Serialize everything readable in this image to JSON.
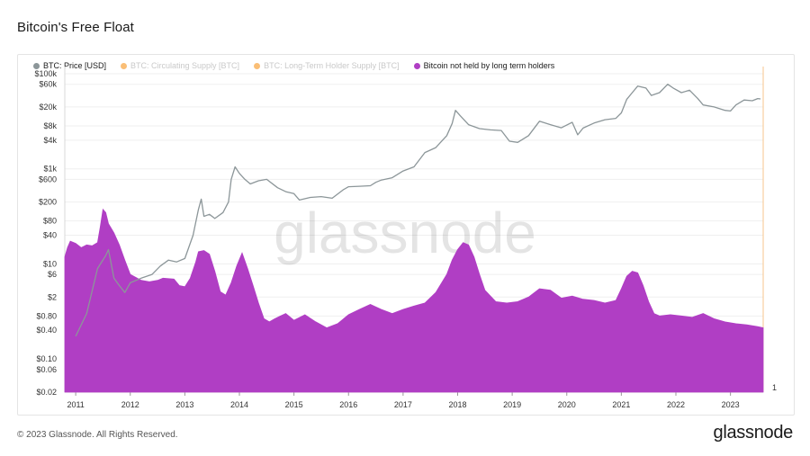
{
  "header": {
    "title": "Bitcoin's Free Float"
  },
  "footer": {
    "copyright": "© 2023 Glassnode. All Rights Reserved.",
    "brand": "glassnode"
  },
  "watermark": "glassnode",
  "legend": [
    {
      "label": "BTC: Price [USD]",
      "color": "#8c9699",
      "muted": false
    },
    {
      "label": "BTC: Circulating Supply [BTC]",
      "color": "#f7931a",
      "muted": true
    },
    {
      "label": "BTC: Long-Term Holder Supply [BTC]",
      "color": "#f7931a",
      "muted": true
    },
    {
      "label": "Bitcoin not held by long term holders",
      "color": "#b03ec4",
      "muted": false
    }
  ],
  "chart_data": {
    "type": "area",
    "title": "Bitcoin's Free Float",
    "x_ticks": [
      "2011",
      "2012",
      "2013",
      "2014",
      "2015",
      "2016",
      "2017",
      "2018",
      "2019",
      "2020",
      "2021",
      "2022",
      "2023"
    ],
    "x_range": [
      2010.8,
      2023.6
    ],
    "y_left": {
      "scale": "log",
      "range": [
        0.02,
        100000
      ],
      "ticks": [
        "$100k",
        "$60k",
        "$20k",
        "$8k",
        "$4k",
        "$1k",
        "$600",
        "$200",
        "$80",
        "$40",
        "$10",
        "$6",
        "$2",
        "$0.80",
        "$0.40",
        "$0.10",
        "$0.06",
        "$0.02"
      ]
    },
    "y_right": {
      "ticks": [
        "1"
      ]
    },
    "series": [
      {
        "name": "Bitcoin not held by long term holders",
        "kind": "area",
        "color": "#b03ec4",
        "x": [
          2010.8,
          2010.85,
          2010.9,
          2011.0,
          2011.1,
          2011.2,
          2011.3,
          2011.4,
          2011.45,
          2011.5,
          2011.55,
          2011.6,
          2011.7,
          2011.8,
          2011.9,
          2012.0,
          2012.2,
          2012.35,
          2012.5,
          2012.6,
          2012.8,
          2012.9,
          2013.0,
          2013.1,
          2013.2,
          2013.25,
          2013.35,
          2013.45,
          2013.55,
          2013.65,
          2013.75,
          2013.85,
          2013.95,
          2014.05,
          2014.15,
          2014.25,
          2014.35,
          2014.45,
          2014.55,
          2014.65,
          2014.75,
          2014.85,
          2015.0,
          2015.2,
          2015.4,
          2015.6,
          2015.8,
          2016.0,
          2016.2,
          2016.4,
          2016.6,
          2016.8,
          2017.0,
          2017.2,
          2017.4,
          2017.6,
          2017.8,
          2017.9,
          2018.0,
          2018.1,
          2018.2,
          2018.3,
          2018.4,
          2018.5,
          2018.7,
          2018.9,
          2019.1,
          2019.3,
          2019.5,
          2019.7,
          2019.9,
          2020.1,
          2020.3,
          2020.5,
          2020.7,
          2020.9,
          2021.0,
          2021.1,
          2021.2,
          2021.3,
          2021.4,
          2021.5,
          2021.6,
          2021.7,
          2021.9,
          2022.1,
          2022.3,
          2022.5,
          2022.7,
          2022.9,
          2023.1,
          2023.3,
          2023.5,
          2023.6
        ],
        "values": [
          14,
          22,
          30,
          27,
          22,
          25,
          24,
          28,
          60,
          140,
          120,
          70,
          45,
          25,
          12,
          6,
          4.5,
          4.2,
          4.5,
          5.0,
          4.8,
          3.5,
          3.3,
          5.0,
          11,
          18,
          19,
          16,
          7,
          2.6,
          2.2,
          4,
          9,
          17,
          8,
          3.5,
          1.5,
          0.7,
          0.6,
          0.7,
          0.8,
          0.9,
          0.65,
          0.85,
          0.6,
          0.45,
          0.55,
          0.85,
          1.1,
          1.4,
          1.1,
          0.9,
          1.1,
          1.3,
          1.5,
          2.5,
          6,
          12,
          20,
          28,
          25,
          14,
          6,
          2.8,
          1.6,
          1.5,
          1.6,
          2.0,
          3.0,
          2.8,
          1.9,
          2.1,
          1.8,
          1.7,
          1.5,
          1.7,
          3.0,
          5.5,
          7,
          6.5,
          3.5,
          1.6,
          0.9,
          0.8,
          0.85,
          0.8,
          0.75,
          0.9,
          0.7,
          0.6,
          0.55,
          0.52,
          0.48,
          0.45
        ]
      },
      {
        "name": "BTC: Price [USD]",
        "kind": "line",
        "color": "#8c9699",
        "x": [
          2011.0,
          2011.2,
          2011.4,
          2011.55,
          2011.6,
          2011.7,
          2011.8,
          2011.9,
          2012.0,
          2012.2,
          2012.4,
          2012.55,
          2012.7,
          2012.85,
          2013.0,
          2013.15,
          2013.25,
          2013.3,
          2013.35,
          2013.45,
          2013.55,
          2013.7,
          2013.8,
          2013.85,
          2013.92,
          2014.0,
          2014.1,
          2014.2,
          2014.35,
          2014.5,
          2014.7,
          2014.85,
          2015.0,
          2015.1,
          2015.3,
          2015.5,
          2015.7,
          2015.9,
          2016.0,
          2016.2,
          2016.4,
          2016.5,
          2016.6,
          2016.8,
          2017.0,
          2017.2,
          2017.4,
          2017.6,
          2017.8,
          2017.9,
          2017.96,
          2018.05,
          2018.2,
          2018.4,
          2018.6,
          2018.8,
          2018.95,
          2019.1,
          2019.3,
          2019.5,
          2019.7,
          2019.9,
          2020.1,
          2020.2,
          2020.3,
          2020.5,
          2020.7,
          2020.9,
          2021.0,
          2021.1,
          2021.2,
          2021.3,
          2021.45,
          2021.55,
          2021.7,
          2021.85,
          2021.95,
          2022.1,
          2022.25,
          2022.4,
          2022.5,
          2022.7,
          2022.9,
          2023.0,
          2023.1,
          2023.25,
          2023.4,
          2023.5,
          2023.55
        ],
        "values": [
          0.3,
          0.9,
          8,
          15,
          20,
          5,
          3.5,
          2.5,
          4,
          5,
          6,
          9,
          12,
          11,
          13,
          40,
          140,
          230,
          100,
          110,
          90,
          120,
          200,
          600,
          1100,
          800,
          600,
          480,
          560,
          600,
          400,
          330,
          300,
          220,
          250,
          260,
          240,
          360,
          420,
          430,
          440,
          520,
          580,
          650,
          900,
          1100,
          2200,
          2800,
          5000,
          9000,
          17000,
          13000,
          8500,
          7000,
          6600,
          6400,
          3800,
          3600,
          5000,
          10000,
          8500,
          7300,
          9500,
          5200,
          7200,
          9200,
          10800,
          11500,
          15000,
          29000,
          40000,
          55000,
          50000,
          35000,
          40000,
          60000,
          50000,
          40000,
          45000,
          30000,
          22000,
          20000,
          17000,
          16500,
          22000,
          28000,
          27000,
          30000,
          29500
        ]
      }
    ]
  }
}
